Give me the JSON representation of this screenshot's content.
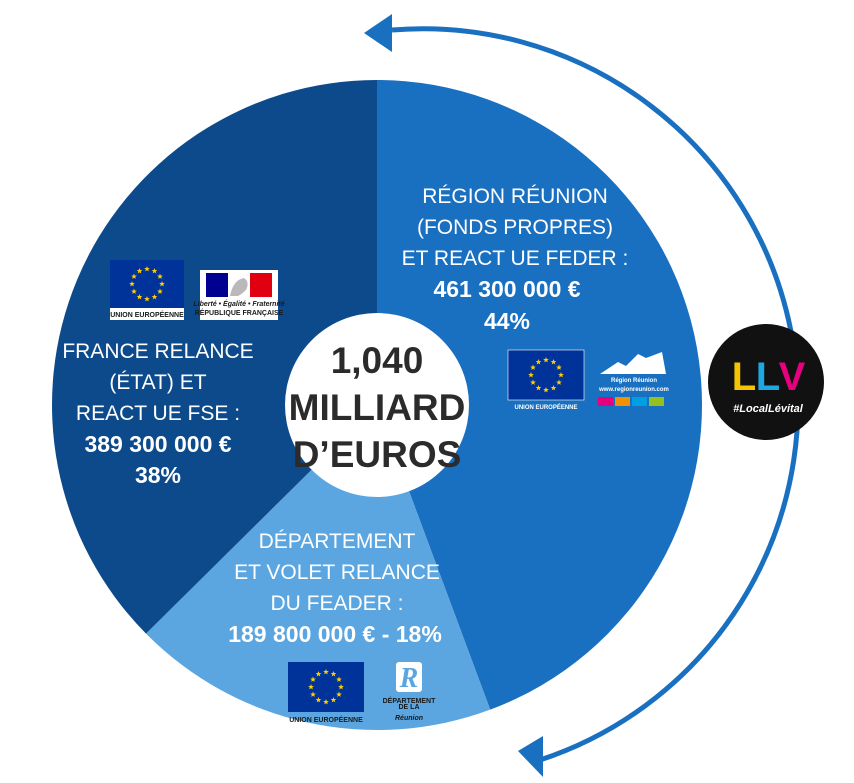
{
  "chart_data": {
    "type": "pie",
    "title_lines": [
      "1,040",
      "MILLIARD",
      "D’EUROS"
    ],
    "colors": {
      "region": "#1a70c0",
      "france": "#0d4a8c",
      "departement": "#5ba6e0",
      "arrow": "#1a70c0",
      "center": "#ffffff"
    },
    "slices": [
      {
        "key": "region",
        "value": 461300000,
        "percent": 44,
        "label_lines": [
          "RÉGION RÉUNION",
          "(FONDS PROPRES)",
          "ET REACT UE FEDER :"
        ],
        "value_text": "461 300 000 €",
        "percent_text": "44%"
      },
      {
        "key": "departement",
        "value": 189800000,
        "percent": 18,
        "label_lines": [
          "DÉPARTEMENT",
          "ET  VOLET RELANCE",
          "DU FEADER :"
        ],
        "value_text": "189 800 000 € - 18%"
      },
      {
        "key": "france",
        "value": 389300000,
        "percent": 38,
        "label_lines": [
          "FRANCE RELANCE",
          "(ÉTAT) ET",
          "REACT UE FSE :"
        ],
        "value_text": "389 300 000 €",
        "percent_text": "38%"
      }
    ]
  },
  "logos": {
    "eu_caption": "UNION EUROPÉENNE",
    "rf_motto": "Liberté • Égalité • Fraternité",
    "rf_caption": "RÉPUBLIQUE FRANÇAISE",
    "region_name": "Région Réunion",
    "region_url": "www.regionreunion.com",
    "dept_top": "DÉPARTEMENT",
    "dept_mid": "DE LA",
    "dept_name": "Réunion",
    "llv_tag": "#LocalLévital"
  }
}
